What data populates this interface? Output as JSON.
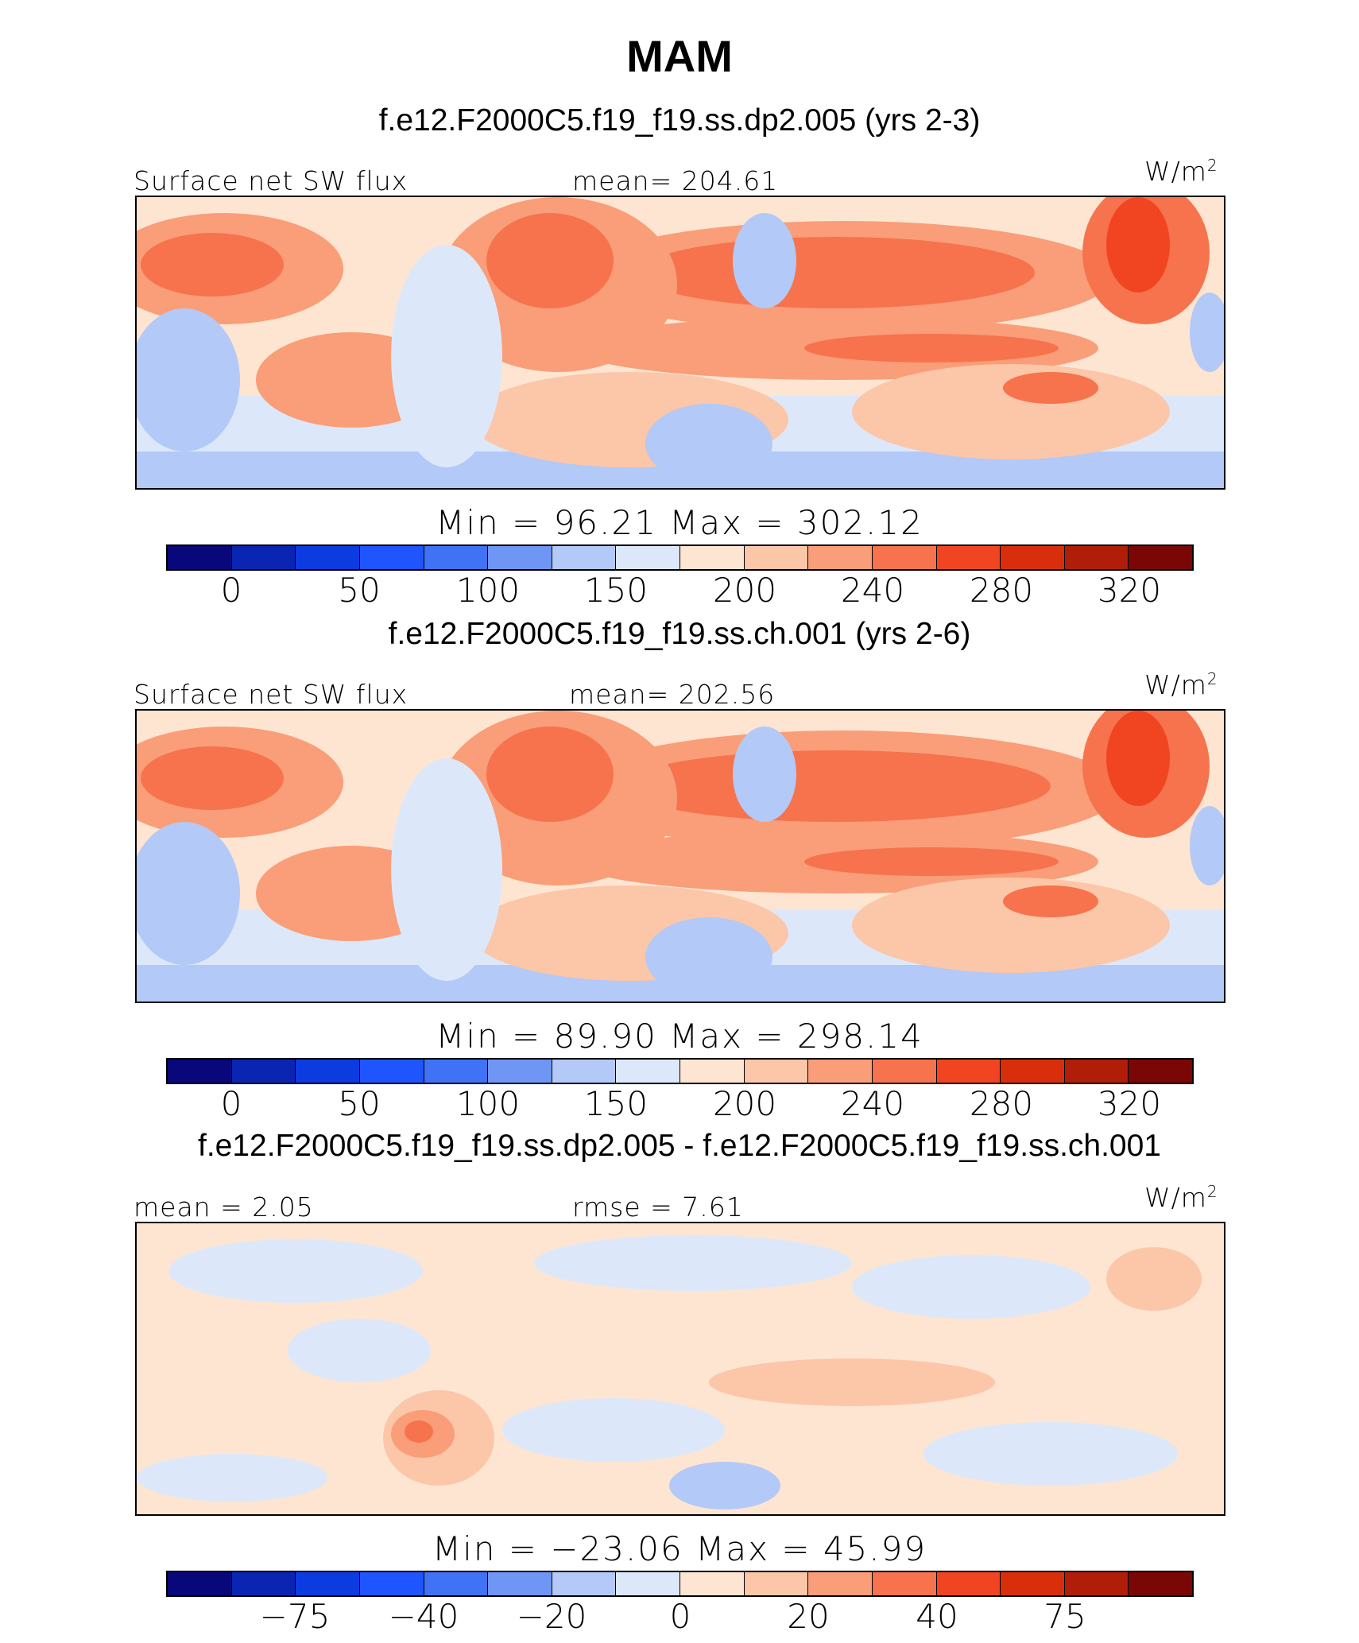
{
  "title": "MAM",
  "units": {
    "text": "W/m",
    "sup": "2"
  },
  "colorbar_colors": [
    "#08087a",
    "#0b25b3",
    "#0c3be0",
    "#1f55ff",
    "#3f72f5",
    "#6f96f5",
    "#b3c9f7",
    "#dce8fa",
    "#fde5d2",
    "#fcc6a8",
    "#f99e78",
    "#f6734d",
    "#f14521",
    "#d92e0c",
    "#b01d08",
    "#7a0606"
  ],
  "panels": [
    {
      "title": "f.e12.F2000C5.f19_f19.ss.dp2.005 (yrs 2-3)",
      "left_label": "Surface  net  SW  flux",
      "center_label": "mean=  204.61",
      "minmax": "Min  =    96.21  Max  =  302.12",
      "ticks": [
        "0",
        "50",
        "100",
        "150",
        "200",
        "240",
        "280",
        "320"
      ]
    },
    {
      "title": "f.e12.F2000C5.f19_f19.ss.ch.001 (yrs 2-6)",
      "left_label": "Surface  net  SW  flux",
      "center_label": "mean=  202.56",
      "minmax": "Min  =    89.90  Max  =  298.14",
      "ticks": [
        "0",
        "50",
        "100",
        "150",
        "200",
        "240",
        "280",
        "320"
      ]
    },
    {
      "title": "f.e12.F2000C5.f19_f19.ss.dp2.005 - f.e12.F2000C5.f19_f19.ss.ch.001",
      "left_label": "mean  =      2.05",
      "center_label": "rmse  =      7.61",
      "minmax": "Min  =  −23.06  Max  =     45.99",
      "ticks": [
        "−75",
        "−40",
        "−20",
        "0",
        "20",
        "40",
        "75"
      ]
    }
  ],
  "chart_data": [
    {
      "type": "heatmap",
      "title": "f.e12.F2000C5.f19_f19.ss.dp2.005 (yrs 2-3)",
      "variable": "Surface net SW flux",
      "units": "W/m2",
      "mean": 204.61,
      "min": 96.21,
      "max": 302.12,
      "colorbar_ticks": [
        0,
        50,
        100,
        150,
        200,
        240,
        280,
        320
      ]
    },
    {
      "type": "heatmap",
      "title": "f.e12.F2000C5.f19_f19.ss.ch.001 (yrs 2-6)",
      "variable": "Surface net SW flux",
      "units": "W/m2",
      "mean": 202.56,
      "min": 89.9,
      "max": 298.14,
      "colorbar_ticks": [
        0,
        50,
        100,
        150,
        200,
        240,
        280,
        320
      ]
    },
    {
      "type": "heatmap",
      "title": "f.e12.F2000C5.f19_f19.ss.dp2.005 - f.e12.F2000C5.f19_f19.ss.ch.001",
      "units": "W/m2",
      "mean": 2.05,
      "rmse": 7.61,
      "min": -23.06,
      "max": 45.99,
      "colorbar_ticks": [
        -75,
        -40,
        -20,
        0,
        20,
        40,
        75
      ]
    }
  ]
}
